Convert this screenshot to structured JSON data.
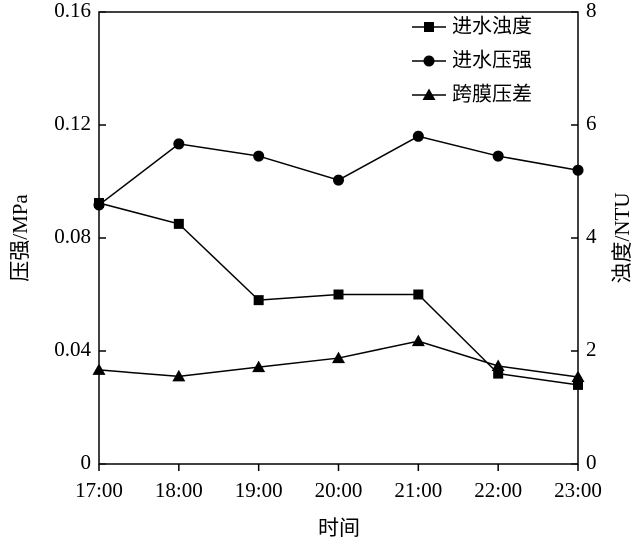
{
  "chart_data": {
    "type": "line",
    "categories": [
      "17:00",
      "18:00",
      "19:00",
      "20:00",
      "21:00",
      "22:00",
      "23:00"
    ],
    "xlabel": "时间",
    "ylabel": "压强/MPa",
    "y2label": "浊度/NTU",
    "ylim": [
      0,
      0.16
    ],
    "yticks": [
      0,
      0.04,
      0.08,
      0.12,
      0.16
    ],
    "y2lim": [
      0,
      8
    ],
    "y2ticks": [
      0,
      2,
      4,
      6,
      8
    ],
    "legend": "upper right",
    "series": [
      {
        "name": "进水浊度",
        "color": "#000000",
        "marker": "square",
        "axis": "y2",
        "values": [
          4.62,
          4.25,
          2.9,
          3.0,
          3.0,
          1.6,
          1.4
        ]
      },
      {
        "name": "进水压强",
        "color": "#000000",
        "marker": "circle",
        "values": [
          0.0917,
          0.1133,
          0.109,
          0.1005,
          0.116,
          0.109,
          0.104
        ]
      },
      {
        "name": "跨膜压差",
        "color": "#000000",
        "marker": "triangle",
        "values": [
          0.0333,
          0.031,
          0.0343,
          0.0375,
          0.0435,
          0.0347,
          0.0308
        ]
      }
    ]
  }
}
